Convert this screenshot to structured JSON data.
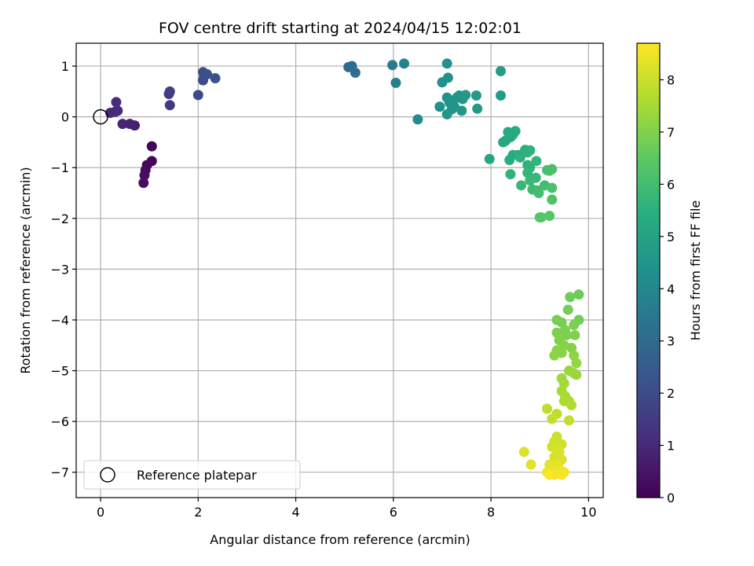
{
  "chart_data": {
    "type": "scatter",
    "title": "FOV centre drift starting at 2024/04/15 12:02:01",
    "xlabel": "Angular distance from reference (arcmin)",
    "ylabel": "Rotation from reference (arcmin)",
    "xlim": [
      -0.5,
      10.3
    ],
    "ylim": [
      -7.5,
      1.45
    ],
    "xticks": [
      0,
      2,
      4,
      6,
      8,
      10
    ],
    "yticks": [
      1,
      0,
      -1,
      -2,
      -3,
      -4,
      -5,
      -6,
      -7
    ],
    "grid": true,
    "legend": {
      "placement": "lower-left",
      "entries": [
        "Reference platepar"
      ]
    },
    "reference_point": {
      "x": 0,
      "y": 0
    },
    "colorbar": {
      "label": "Hours from first FF file",
      "colormap": "viridis",
      "range": [
        0,
        8.7
      ],
      "ticks": [
        0,
        1,
        2,
        3,
        4,
        5,
        6,
        7,
        8
      ]
    },
    "series": [
      {
        "points": [
          [
            1.05,
            -0.58,
            0.1
          ],
          [
            1.05,
            -0.87,
            0.15
          ],
          [
            0.95,
            -0.95,
            0.2
          ],
          [
            0.92,
            -1.05,
            0.25
          ],
          [
            0.9,
            -1.15,
            0.3
          ],
          [
            0.88,
            -1.3,
            0.35
          ],
          [
            0.7,
            -0.17,
            0.8
          ],
          [
            0.6,
            -0.14,
            0.85
          ],
          [
            0.45,
            -0.14,
            0.9
          ],
          [
            0.3,
            0.1,
            0.95
          ],
          [
            0.2,
            0.08,
            1.0
          ],
          [
            0.35,
            0.12,
            1.05
          ],
          [
            0.32,
            0.29,
            1.1
          ],
          [
            1.42,
            0.23,
            1.5
          ],
          [
            1.4,
            0.45,
            1.55
          ],
          [
            1.42,
            0.5,
            1.6
          ],
          [
            2.0,
            0.43,
            1.9
          ],
          [
            2.1,
            0.72,
            2.0
          ],
          [
            2.12,
            0.8,
            2.05
          ],
          [
            2.1,
            0.88,
            2.1
          ],
          [
            2.18,
            0.84,
            2.15
          ],
          [
            2.35,
            0.76,
            2.2
          ],
          [
            5.08,
            0.98,
            3.0
          ],
          [
            5.15,
            1.0,
            3.05
          ],
          [
            5.22,
            0.87,
            3.1
          ],
          [
            5.98,
            1.02,
            3.6
          ],
          [
            6.05,
            0.67,
            3.7
          ],
          [
            6.22,
            1.05,
            3.75
          ],
          [
            6.5,
            -0.05,
            4.2
          ],
          [
            6.95,
            0.2,
            4.35
          ],
          [
            7.0,
            0.68,
            4.3
          ],
          [
            7.1,
            1.05,
            4.3
          ],
          [
            7.12,
            0.77,
            4.35
          ],
          [
            7.1,
            0.38,
            4.4
          ],
          [
            7.15,
            0.28,
            4.45
          ],
          [
            7.2,
            0.15,
            4.5
          ],
          [
            7.1,
            0.05,
            4.55
          ],
          [
            7.25,
            0.2,
            4.5
          ],
          [
            7.3,
            0.38,
            4.5
          ],
          [
            7.35,
            0.42,
            4.55
          ],
          [
            7.4,
            0.12,
            4.6
          ],
          [
            7.42,
            0.35,
            4.6
          ],
          [
            7.48,
            0.43,
            4.6
          ],
          [
            7.7,
            0.42,
            4.65
          ],
          [
            7.72,
            0.16,
            4.7
          ],
          [
            8.2,
            0.9,
            4.75
          ],
          [
            8.2,
            0.42,
            4.8
          ],
          [
            7.97,
            -0.83,
            5.1
          ],
          [
            8.25,
            -0.5,
            5.2
          ],
          [
            8.3,
            -0.47,
            5.2
          ],
          [
            8.35,
            -0.3,
            5.25
          ],
          [
            8.4,
            -0.4,
            5.3
          ],
          [
            8.45,
            -0.35,
            5.3
          ],
          [
            8.5,
            -0.28,
            5.35
          ],
          [
            8.38,
            -0.85,
            5.4
          ],
          [
            8.45,
            -0.75,
            5.4
          ],
          [
            8.55,
            -0.75,
            5.45
          ],
          [
            8.6,
            -0.8,
            5.5
          ],
          [
            8.7,
            -0.65,
            5.5
          ],
          [
            8.75,
            -0.7,
            5.55
          ],
          [
            8.8,
            -0.66,
            5.55
          ],
          [
            8.75,
            -0.95,
            5.6
          ],
          [
            8.8,
            -1.0,
            5.6
          ],
          [
            8.4,
            -1.13,
            5.65
          ],
          [
            8.75,
            -1.1,
            5.7
          ],
          [
            8.93,
            -0.87,
            5.7
          ],
          [
            8.92,
            -1.2,
            5.75
          ],
          [
            8.62,
            -1.35,
            5.8
          ],
          [
            8.8,
            -1.25,
            5.85
          ],
          [
            8.85,
            -1.43,
            5.9
          ],
          [
            8.95,
            -1.45,
            5.95
          ],
          [
            8.98,
            -1.5,
            6.0
          ],
          [
            9.1,
            -1.35,
            6.0
          ],
          [
            9.15,
            -1.05,
            6.05
          ],
          [
            9.2,
            -1.06,
            6.1
          ],
          [
            9.25,
            -1.03,
            6.1
          ],
          [
            9.25,
            -1.4,
            6.15
          ],
          [
            9.25,
            -1.63,
            6.2
          ],
          [
            9.0,
            -1.98,
            6.3
          ],
          [
            9.03,
            -1.98,
            6.35
          ],
          [
            9.2,
            -1.95,
            6.35
          ],
          [
            9.8,
            -3.5,
            6.7
          ],
          [
            9.62,
            -3.55,
            6.75
          ],
          [
            9.58,
            -3.8,
            6.8
          ],
          [
            9.8,
            -4.0,
            6.8
          ],
          [
            9.35,
            -4.0,
            6.85
          ],
          [
            9.45,
            -4.05,
            6.85
          ],
          [
            9.7,
            -4.1,
            6.9
          ],
          [
            9.52,
            -4.2,
            6.9
          ],
          [
            9.35,
            -4.25,
            6.95
          ],
          [
            9.55,
            -4.3,
            6.95
          ],
          [
            9.72,
            -4.3,
            7.0
          ],
          [
            9.4,
            -4.4,
            7.0
          ],
          [
            9.5,
            -4.5,
            7.05
          ],
          [
            9.65,
            -4.55,
            7.05
          ],
          [
            9.35,
            -4.6,
            7.1
          ],
          [
            9.45,
            -4.65,
            7.1
          ],
          [
            9.3,
            -4.7,
            7.15
          ],
          [
            9.7,
            -4.7,
            7.2
          ],
          [
            9.75,
            -4.85,
            7.25
          ],
          [
            9.6,
            -5.0,
            7.3
          ],
          [
            9.7,
            -5.05,
            7.3
          ],
          [
            9.75,
            -5.08,
            7.35
          ],
          [
            9.45,
            -5.15,
            7.4
          ],
          [
            9.5,
            -5.25,
            7.45
          ],
          [
            9.45,
            -5.4,
            7.5
          ],
          [
            9.52,
            -5.5,
            7.55
          ],
          [
            9.5,
            -5.6,
            7.6
          ],
          [
            9.6,
            -5.6,
            7.6
          ],
          [
            9.65,
            -5.68,
            7.65
          ],
          [
            9.15,
            -5.75,
            7.8
          ],
          [
            9.35,
            -5.85,
            7.85
          ],
          [
            9.25,
            -5.95,
            7.9
          ],
          [
            9.6,
            -5.98,
            7.9
          ],
          [
            9.35,
            -6.3,
            8.0
          ],
          [
            9.3,
            -6.4,
            8.05
          ],
          [
            9.45,
            -6.45,
            8.1
          ],
          [
            9.25,
            -6.5,
            8.1
          ],
          [
            9.35,
            -6.55,
            8.15
          ],
          [
            9.4,
            -6.6,
            8.15
          ],
          [
            9.3,
            -6.7,
            8.2
          ],
          [
            9.45,
            -6.75,
            8.25
          ],
          [
            8.68,
            -6.6,
            8.25
          ],
          [
            8.82,
            -6.85,
            8.3
          ],
          [
            9.2,
            -6.85,
            8.35
          ],
          [
            9.38,
            -6.85,
            8.35
          ],
          [
            9.25,
            -6.95,
            8.4
          ],
          [
            9.4,
            -6.95,
            8.45
          ],
          [
            9.5,
            -7.0,
            8.5
          ],
          [
            9.15,
            -7.0,
            8.5
          ],
          [
            9.3,
            -7.05,
            8.55
          ],
          [
            9.45,
            -7.05,
            8.6
          ],
          [
            9.2,
            -7.05,
            8.65
          ]
        ]
      }
    ]
  }
}
